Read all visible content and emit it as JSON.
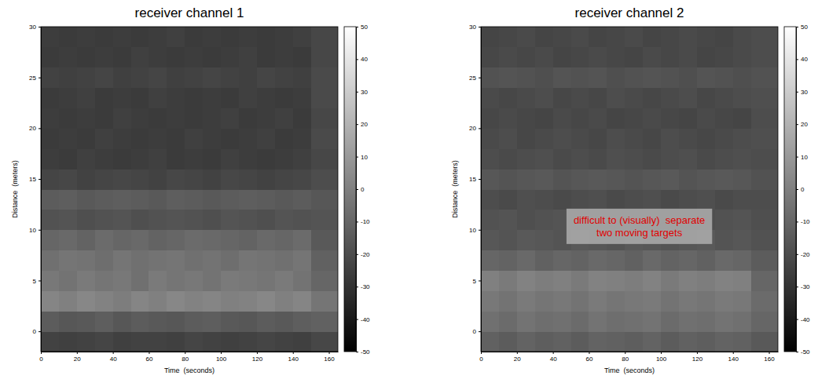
{
  "chart_data": [
    {
      "type": "heatmap",
      "title": "receiver channel 1",
      "xlabel": "Time  (seconds)",
      "ylabel": "Distance  (meters)",
      "xlim": [
        0,
        165
      ],
      "ylim": [
        -2,
        30
      ],
      "xticks": [
        0,
        20,
        40,
        60,
        80,
        100,
        120,
        140,
        160
      ],
      "yticks": [
        0,
        5,
        10,
        15,
        20,
        25,
        30
      ],
      "x_edges": [
        0,
        10,
        20,
        30,
        40,
        50,
        60,
        70,
        80,
        90,
        100,
        110,
        120,
        130,
        140,
        150,
        165
      ],
      "y_edges": [
        -2,
        0,
        2,
        4,
        6,
        8,
        10,
        12,
        14,
        16,
        18,
        20,
        22,
        24,
        26,
        28,
        30
      ],
      "cells": [
        [
          -24,
          -25,
          -24,
          -23,
          -25,
          -24,
          -24,
          -25,
          -23,
          -24,
          -25,
          -24,
          -23,
          -24,
          -25,
          -22
        ],
        [
          -14,
          -16,
          -15,
          -13,
          -16,
          -14,
          -15,
          -16,
          -14,
          -13,
          -15,
          -16,
          -14,
          -15,
          -13,
          -12
        ],
        [
          2,
          0,
          3,
          1,
          -1,
          2,
          0,
          3,
          1,
          2,
          0,
          1,
          3,
          0,
          2,
          -4
        ],
        [
          -3,
          -5,
          -2,
          -4,
          -3,
          -6,
          -2,
          -4,
          -3,
          -5,
          -2,
          -3,
          -4,
          -2,
          -5,
          -10
        ],
        [
          -6,
          -4,
          -5,
          -7,
          -4,
          -6,
          -5,
          -4,
          -6,
          -5,
          -7,
          -4,
          -5,
          -6,
          -4,
          -12
        ],
        [
          -10,
          -9,
          -11,
          -8,
          -10,
          -9,
          -11,
          -10,
          -8,
          -9,
          -10,
          -11,
          -9,
          -10,
          -8,
          -15
        ],
        [
          -18,
          -17,
          -19,
          -18,
          -17,
          -19,
          -18,
          -17,
          -18,
          -19,
          -17,
          -18,
          -19,
          -17,
          -18,
          -17
        ],
        [
          -14,
          -13,
          -15,
          -14,
          -13,
          -14,
          -15,
          -13,
          -14,
          -15,
          -14,
          -13,
          -14,
          -15,
          -14,
          -16
        ],
        [
          -23,
          -22,
          -24,
          -23,
          -22,
          -23,
          -24,
          -22,
          -23,
          -24,
          -22,
          -23,
          -24,
          -23,
          -22,
          -20
        ],
        [
          -26,
          -27,
          -25,
          -26,
          -27,
          -26,
          -25,
          -27,
          -26,
          -27,
          -25,
          -26,
          -27,
          -26,
          -25,
          -22
        ],
        [
          -27,
          -26,
          -27,
          -25,
          -26,
          -27,
          -26,
          -27,
          -25,
          -26,
          -27,
          -26,
          -25,
          -27,
          -26,
          -21
        ],
        [
          -26,
          -27,
          -26,
          -27,
          -25,
          -26,
          -27,
          -26,
          -27,
          -26,
          -25,
          -27,
          -26,
          -25,
          -27,
          -22
        ],
        [
          -27,
          -26,
          -25,
          -27,
          -26,
          -27,
          -25,
          -26,
          -27,
          -26,
          -27,
          -25,
          -26,
          -27,
          -26,
          -21
        ],
        [
          -24,
          -25,
          -24,
          -23,
          -25,
          -24,
          -23,
          -25,
          -24,
          -23,
          -24,
          -25,
          -23,
          -24,
          -25,
          -21
        ],
        [
          -27,
          -26,
          -27,
          -26,
          -27,
          -25,
          -26,
          -27,
          -26,
          -27,
          -26,
          -25,
          -27,
          -26,
          -27,
          -22
        ],
        [
          -26,
          -27,
          -26,
          -27,
          -26,
          -27,
          -26,
          -25,
          -27,
          -26,
          -27,
          -26,
          -27,
          -26,
          -25,
          -22
        ]
      ],
      "colorbar": {
        "range": [
          -50,
          50
        ],
        "ticks": [
          -50,
          -40,
          -30,
          -20,
          -10,
          0,
          10,
          20,
          30,
          40,
          50
        ]
      }
    },
    {
      "type": "heatmap",
      "title": "receiver channel 2",
      "xlabel": "Time  (seconds)",
      "ylabel": "Distance  (meters)",
      "xlim": [
        0,
        165
      ],
      "ylim": [
        -2,
        30
      ],
      "xticks": [
        0,
        20,
        40,
        60,
        80,
        100,
        120,
        140,
        160
      ],
      "yticks": [
        0,
        5,
        10,
        15,
        20,
        25,
        30
      ],
      "x_edges": [
        0,
        10,
        20,
        30,
        40,
        50,
        60,
        70,
        80,
        90,
        100,
        110,
        120,
        130,
        140,
        150,
        165
      ],
      "y_edges": [
        -2,
        0,
        2,
        4,
        6,
        8,
        10,
        12,
        14,
        16,
        18,
        20,
        22,
        24,
        26,
        28,
        30
      ],
      "cells": [
        [
          -12,
          -14,
          -11,
          -13,
          -12,
          -14,
          -11,
          -12,
          -13,
          -11,
          -14,
          -12,
          -13,
          -11,
          -12,
          -15
        ],
        [
          -6,
          -8,
          -5,
          -7,
          -6,
          -8,
          -5,
          -7,
          -6,
          -5,
          -8,
          -6,
          -7,
          -5,
          -6,
          -10
        ],
        [
          -3,
          -5,
          -2,
          -4,
          -3,
          -5,
          -2,
          -4,
          -3,
          -2,
          -5,
          -3,
          -4,
          -2,
          -3,
          -8
        ],
        [
          0,
          -2,
          1,
          -1,
          0,
          -2,
          1,
          0,
          -1,
          1,
          -2,
          0,
          -1,
          1,
          0,
          -10
        ],
        [
          -10,
          -11,
          -9,
          -12,
          -10,
          -11,
          -9,
          -10,
          -12,
          -9,
          -11,
          -10,
          -12,
          -9,
          -10,
          -14
        ],
        [
          -16,
          -17,
          -15,
          -16,
          -17,
          -15,
          -16,
          -17,
          -15,
          -16,
          -17,
          -16,
          -15,
          -17,
          -16,
          -18
        ],
        [
          -18,
          -17,
          -19,
          -18,
          -17,
          -18,
          -19,
          -17,
          -18,
          -19,
          -17,
          -18,
          -19,
          -18,
          -17,
          -19
        ],
        [
          -20,
          -21,
          -19,
          -20,
          -21,
          -20,
          -19,
          -21,
          -20,
          -19,
          -21,
          -20,
          -19,
          -21,
          -20,
          -20
        ],
        [
          -16,
          -17,
          -16,
          -15,
          -17,
          -16,
          -15,
          -16,
          -17,
          -16,
          -15,
          -17,
          -16,
          -15,
          -16,
          -18
        ],
        [
          -20,
          -21,
          -20,
          -19,
          -21,
          -20,
          -21,
          -19,
          -20,
          -21,
          -20,
          -19,
          -21,
          -20,
          -19,
          -20
        ],
        [
          -21,
          -20,
          -22,
          -21,
          -20,
          -21,
          -22,
          -20,
          -21,
          -22,
          -20,
          -21,
          -22,
          -21,
          -20,
          -19
        ],
        [
          -22,
          -21,
          -22,
          -23,
          -21,
          -22,
          -21,
          -23,
          -22,
          -21,
          -22,
          -23,
          -21,
          -22,
          -23,
          -20
        ],
        [
          -21,
          -22,
          -21,
          -20,
          -22,
          -21,
          -22,
          -20,
          -21,
          -22,
          -21,
          -20,
          -22,
          -21,
          -20,
          -19
        ],
        [
          -18,
          -17,
          -18,
          -19,
          -17,
          -18,
          -17,
          -19,
          -18,
          -17,
          -18,
          -19,
          -17,
          -18,
          -19,
          -18
        ],
        [
          -22,
          -21,
          -22,
          -21,
          -23,
          -22,
          -21,
          -22,
          -23,
          -21,
          -22,
          -21,
          -23,
          -22,
          -21,
          -20
        ],
        [
          -23,
          -22,
          -21,
          -23,
          -22,
          -21,
          -23,
          -22,
          -21,
          -23,
          -22,
          -21,
          -22,
          -23,
          -21,
          -20
        ]
      ],
      "colorbar": {
        "range": [
          -50,
          50
        ],
        "ticks": [
          -50,
          -40,
          -30,
          -20,
          -10,
          0,
          10,
          20,
          30,
          40,
          50
        ]
      },
      "annotation": {
        "text": [
          "difficult to (visually)  separate",
          "two moving targets"
        ],
        "x": 88,
        "y": 10.3
      }
    }
  ]
}
